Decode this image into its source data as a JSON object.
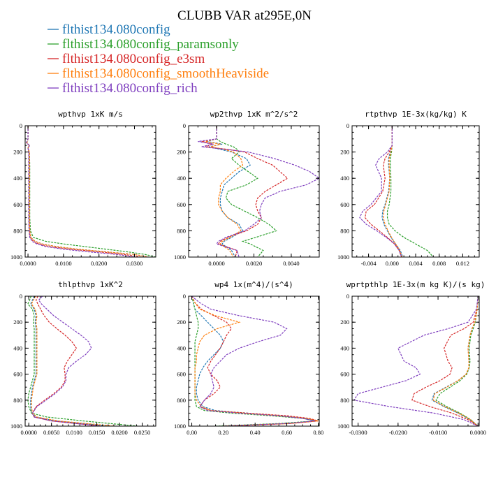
{
  "figure": {
    "title": "CLUBB VAR at295E,0N"
  },
  "legend": [
    {
      "label": "flthist134.080config",
      "color": "#1f77b4"
    },
    {
      "label": "flthist134.080config_paramsonly",
      "color": "#2ca02c"
    },
    {
      "label": "flthist134.080config_e3sm",
      "color": "#d62728"
    },
    {
      "label": "flthist134.080config_smoothHeaviside",
      "color": "#ff7f0e"
    },
    {
      "label": "flthist134.080config_rich",
      "color": "#7f3fbf"
    }
  ],
  "chart_data": [
    {
      "type": "line",
      "title": "wpthvp  1xK m/s",
      "xlim": [
        -0.0008,
        0.036
      ],
      "ylim": [
        0,
        1000
      ],
      "xticks": [
        0,
        0.01,
        0.02,
        0.03
      ],
      "xticklabels": [
        "0.0000",
        "0.0100",
        "0.0200",
        "0.0300"
      ],
      "yticks": [
        0,
        200,
        400,
        600,
        800,
        1000
      ],
      "yticklabels": [
        "0",
        "200",
        "400",
        "600",
        "800",
        "1000"
      ],
      "y": [
        0,
        100,
        130,
        150,
        170,
        200,
        300,
        400,
        500,
        600,
        700,
        800,
        850,
        880,
        900,
        920,
        940,
        960,
        980,
        1000
      ],
      "series": [
        {
          "values": [
            0,
            0,
            -0.0003,
            0.0003,
            0,
            0.0003,
            0.0004,
            0.0004,
            0.0004,
            0.0004,
            0.0004,
            0.0005,
            0.0008,
            0.002,
            0.004,
            0.008,
            0.014,
            0.022,
            0.03,
            0.034
          ]
        },
        {
          "values": [
            0,
            0,
            -0.0003,
            0.0003,
            0,
            0.0004,
            0.0005,
            0.0005,
            0.0005,
            0.0005,
            0.0005,
            0.0007,
            0.0015,
            0.005,
            0.01,
            0.016,
            0.022,
            0.028,
            0.033,
            0.036
          ]
        },
        {
          "values": [
            0,
            0,
            -0.0004,
            0.0004,
            0,
            0.0003,
            0.0003,
            0.0003,
            0.0003,
            0.0003,
            0.0003,
            0.0004,
            0.0006,
            0.0015,
            0.003,
            0.006,
            0.012,
            0.02,
            0.027,
            0.032
          ]
        },
        {
          "values": [
            0,
            0,
            -0.0003,
            0.0003,
            0,
            0.0004,
            0.0004,
            0.0004,
            0.0004,
            0.0004,
            0.0004,
            0.0005,
            0.0008,
            0.002,
            0.004,
            0.008,
            0.014,
            0.022,
            0.03,
            0.034
          ]
        },
        {
          "values": [
            0,
            0,
            -0.0005,
            0.0005,
            0,
            0.0002,
            0.0002,
            0.0002,
            0.0002,
            0.0002,
            0.0002,
            0.0003,
            0.0005,
            0.0012,
            0.0025,
            0.005,
            0.01,
            0.017,
            0.025,
            0.03
          ]
        }
      ]
    },
    {
      "type": "line",
      "title": "wp2thvp  1xK m^2/s^2",
      "xlim": [
        -0.0015,
        0.0055
      ],
      "ylim": [
        0,
        1000
      ],
      "xticks": [
        0,
        0.002,
        0.004
      ],
      "xticklabels": [
        "0.0000",
        "0.0020",
        "0.0040"
      ],
      "yticks": [
        0,
        200,
        400,
        600,
        800,
        1000
      ],
      "yticklabels": [
        "0",
        "200",
        "400",
        "600",
        "800",
        "1000"
      ],
      "y": [
        0,
        100,
        120,
        140,
        160,
        180,
        200,
        250,
        300,
        350,
        400,
        450,
        500,
        550,
        600,
        650,
        700,
        750,
        800,
        850,
        880,
        900,
        950,
        1000
      ],
      "series": [
        {
          "values": [
            0,
            0,
            -0.0005,
            0.0003,
            -0.0004,
            0.0002,
            0.0008,
            0.0016,
            0.0018,
            0.0012,
            0.0008,
            0.0004,
            0.0003,
            0.0002,
            0.0002,
            0.0003,
            0.0006,
            0.0012,
            0.0014,
            0.0008,
            0.0004,
            0.0003,
            0.0008,
            0.001
          ]
        },
        {
          "values": [
            0,
            0,
            0.0002,
            0.0005,
            0.0009,
            0.0011,
            0.0012,
            0.0008,
            0.0012,
            0.0017,
            0.0022,
            0.0016,
            0.0006,
            0.0005,
            0.0008,
            0.0015,
            0.0022,
            0.0028,
            0.0032,
            0.0021,
            0.0014,
            0.0018,
            0.0025,
            0.0022
          ]
        },
        {
          "values": [
            0,
            0,
            -0.0008,
            -0.0002,
            -0.0006,
            0.0006,
            0.0015,
            0.0022,
            0.003,
            0.0034,
            0.0038,
            0.0032,
            0.0026,
            0.0022,
            0.0021,
            0.0022,
            0.0024,
            0.0022,
            0.0016,
            0.0006,
            0.0002,
            0.0001,
            0.0011,
            0.001
          ]
        },
        {
          "values": [
            0,
            0,
            -0.0006,
            0.0002,
            -0.0003,
            0.0004,
            0.0009,
            0.0013,
            0.0014,
            0.0009,
            0.0005,
            0.0002,
            0.0002,
            0.0001,
            0.0001,
            0.0003,
            0.0006,
            0.0011,
            0.0013,
            0.0007,
            0.0003,
            0.0002,
            0.0007,
            0.0009
          ]
        },
        {
          "values": [
            0,
            0,
            -0.001,
            -0.0002,
            -0.0008,
            0.0005,
            0.0017,
            0.0031,
            0.0042,
            0.005,
            0.0055,
            0.0048,
            0.0034,
            0.0026,
            0.0024,
            0.0023,
            0.0024,
            0.002,
            0.0015,
            0.0005,
            0.0001,
            0,
            0.0011,
            0.0012
          ]
        }
      ]
    },
    {
      "type": "line",
      "title": "rtpthvp  1E-3x(kg/kg) K",
      "xlim": [
        -0.0068,
        0.0148
      ],
      "ylim": [
        0,
        1000
      ],
      "xticks": [
        -0.004,
        0,
        0.004,
        0.008,
        0.012
      ],
      "xticklabels": [
        "-0.004",
        "0.000",
        "0.004",
        "0.008",
        "0.012"
      ],
      "yticks": [
        0,
        200,
        400,
        600,
        800,
        1000
      ],
      "yticklabels": [
        "0",
        "200",
        "400",
        "600",
        "800",
        "1000"
      ],
      "y": [
        0,
        100,
        150,
        200,
        250,
        300,
        400,
        500,
        600,
        650,
        700,
        750,
        800,
        850,
        900,
        950,
        1000
      ],
      "series": [
        {
          "values": [
            0,
            0,
            0,
            -0.0003,
            -0.0006,
            -0.0006,
            -0.0004,
            -0.0006,
            -0.0012,
            -0.0016,
            -0.0017,
            -0.0014,
            -0.0008,
            -0.0002,
            0.0006,
            0.0014,
            0.0018
          ]
        },
        {
          "values": [
            0,
            0,
            0,
            -0.0001,
            -0.0003,
            -0.0003,
            -0.0002,
            -0.0002,
            -0.0005,
            -0.0008,
            -0.0008,
            -0.0005,
            0.0005,
            0.002,
            0.004,
            0.006,
            0.007
          ]
        },
        {
          "values": [
            0,
            0,
            0,
            -0.0005,
            -0.0012,
            -0.0015,
            -0.0012,
            -0.0016,
            -0.003,
            -0.0044,
            -0.0046,
            -0.0036,
            -0.0022,
            -0.0008,
            0.0004,
            0.0012,
            0.0016
          ]
        },
        {
          "values": [
            0,
            0,
            0,
            -0.0002,
            -0.0005,
            -0.0005,
            -0.0004,
            -0.0005,
            -0.0011,
            -0.0014,
            -0.0015,
            -0.0012,
            -0.0007,
            -0.0001,
            0.0006,
            0.0013,
            0.0017
          ]
        },
        {
          "values": [
            0,
            0,
            0,
            -0.0008,
            -0.0022,
            -0.0028,
            -0.0018,
            -0.0018,
            -0.0036,
            -0.005,
            -0.0055,
            -0.0044,
            -0.0026,
            -0.001,
            0.0004,
            0.0012,
            0.0016
          ]
        }
      ]
    },
    {
      "type": "line",
      "title": "thlpthvp  1xK^2",
      "xlim": [
        -0.0008,
        0.028
      ],
      "ylim": [
        0,
        1000
      ],
      "xticks": [
        0,
        0.005,
        0.01,
        0.015,
        0.02,
        0.025
      ],
      "xticklabels": [
        "0.0000",
        "0.0050",
        "0.0100",
        "0.0150",
        "0.0200",
        "0.0250"
      ],
      "yticks": [
        0,
        200,
        400,
        600,
        800,
        1000
      ],
      "yticklabels": [
        "0",
        "200",
        "400",
        "600",
        "800",
        "1000"
      ],
      "y": [
        0,
        30,
        60,
        100,
        150,
        200,
        250,
        300,
        350,
        400,
        450,
        500,
        550,
        600,
        650,
        700,
        750,
        800,
        850,
        900,
        930,
        960,
        1000
      ],
      "series": [
        {
          "values": [
            0.0012,
            0.0008,
            0.0004,
            0.0012,
            0.0016,
            0.0014,
            0.0016,
            0.0016,
            0.0016,
            0.0016,
            0.0016,
            0.0016,
            0.0016,
            0.0016,
            0.0012,
            0.0008,
            0.0006,
            0.0004,
            0.0004,
            0.0006,
            0.0015,
            0.006,
            0.018
          ]
        },
        {
          "values": [
            0.0005,
            0.0002,
            -0.0002,
            0.0008,
            0.0012,
            0.001,
            0.0012,
            0.0012,
            0.0012,
            0.0012,
            0.0012,
            0.0012,
            0.0012,
            0.0012,
            0.0008,
            0.0004,
            0,
            -0.0002,
            0,
            0.0006,
            0.004,
            0.012,
            0.024
          ]
        },
        {
          "values": [
            0.002,
            0.0016,
            0.002,
            0.0026,
            0.0034,
            0.0045,
            0.0062,
            0.008,
            0.0095,
            0.0105,
            0.0095,
            0.0085,
            0.0078,
            0.008,
            0.008,
            0.0072,
            0.0055,
            0.0035,
            0.0016,
            0.0008,
            0.0012,
            0.005,
            0.016
          ]
        },
        {
          "values": [
            0.0015,
            0.001,
            0.0006,
            0.0014,
            0.0018,
            0.0016,
            0.0018,
            0.0018,
            0.0018,
            0.0018,
            0.0018,
            0.0018,
            0.0018,
            0.0018,
            0.0014,
            0.001,
            0.0008,
            0.0006,
            0.0006,
            0.0008,
            0.0018,
            0.0065,
            0.019
          ]
        },
        {
          "values": [
            0.003,
            0.0022,
            0.0028,
            0.004,
            0.0055,
            0.0075,
            0.0095,
            0.0115,
            0.0132,
            0.0138,
            0.0125,
            0.0105,
            0.0088,
            0.0082,
            0.0082,
            0.0074,
            0.0058,
            0.0038,
            0.0018,
            0.0008,
            0.0012,
            0.005,
            0.016
          ]
        }
      ]
    },
    {
      "type": "line",
      "title": "wp4  1x(m^4)/(s^4)",
      "xlim": [
        -0.02,
        0.805
      ],
      "ylim": [
        0,
        1000
      ],
      "xticks": [
        0,
        0.2,
        0.4,
        0.6,
        0.8
      ],
      "xticklabels": [
        "0.00",
        "0.20",
        "0.40",
        "0.60",
        "0.80"
      ],
      "yticks": [
        0,
        200,
        400,
        600,
        800,
        1000
      ],
      "yticklabels": [
        "0",
        "200",
        "400",
        "600",
        "800",
        "1000"
      ],
      "y": [
        0,
        50,
        100,
        150,
        200,
        250,
        300,
        350,
        400,
        450,
        500,
        550,
        600,
        650,
        700,
        750,
        800,
        850,
        880,
        900,
        920,
        940,
        960,
        980,
        1000
      ],
      "series": [
        {
          "values": [
            0,
            0.01,
            0.02,
            0.06,
            0.1,
            0.14,
            0.18,
            0.2,
            0.18,
            0.14,
            0.1,
            0.07,
            0.05,
            0.04,
            0.03,
            0.03,
            0.04,
            0.07,
            0.15,
            0.35,
            0.55,
            0.7,
            0.78,
            0.6,
            0.2
          ]
        },
        {
          "values": [
            0,
            0.01,
            0.02,
            0.03,
            0.04,
            0.04,
            0.03,
            0.02,
            0.02,
            0.02,
            0.02,
            0.02,
            0.02,
            0.02,
            0.02,
            0.02,
            0.02,
            0.03,
            0.08,
            0.25,
            0.5,
            0.7,
            0.78,
            0.55,
            0.15
          ]
        },
        {
          "values": [
            0,
            0.02,
            0.06,
            0.14,
            0.22,
            0.25,
            0.22,
            0.2,
            0.18,
            0.15,
            0.12,
            0.1,
            0.12,
            0.16,
            0.18,
            0.14,
            0.08,
            0.05,
            0.12,
            0.35,
            0.6,
            0.74,
            0.8,
            0.62,
            0.2
          ]
        },
        {
          "values": [
            0,
            0.02,
            0.05,
            0.15,
            0.3,
            0.16,
            0.08,
            0.05,
            0.04,
            0.03,
            0.03,
            0.02,
            0.02,
            0.02,
            0.02,
            0.02,
            0.03,
            0.06,
            0.12,
            0.32,
            0.55,
            0.72,
            0.8,
            0.62,
            0.2
          ]
        },
        {
          "values": [
            0,
            0.05,
            0.12,
            0.3,
            0.52,
            0.6,
            0.56,
            0.42,
            0.3,
            0.22,
            0.18,
            0.14,
            0.12,
            0.13,
            0.14,
            0.12,
            0.08,
            0.05,
            0.1,
            0.3,
            0.55,
            0.7,
            0.78,
            0.6,
            0.2
          ]
        }
      ]
    },
    {
      "type": "line",
      "title": "wprtpthlp  1E-3x(m kg K)/(s kg)",
      "xlim": [
        -0.0315,
        0.0003
      ],
      "ylim": [
        0,
        1000
      ],
      "xticks": [
        -0.03,
        -0.02,
        -0.01,
        0
      ],
      "xticklabels": [
        "-0.0300",
        "-0.0200",
        "-0.0100",
        "0.0000"
      ],
      "yticks": [
        0,
        200,
        400,
        600,
        800,
        1000
      ],
      "yticklabels": [
        "0",
        "200",
        "400",
        "600",
        "800",
        "1000"
      ],
      "y": [
        0,
        100,
        200,
        250,
        300,
        400,
        500,
        550,
        600,
        650,
        700,
        750,
        800,
        850,
        900,
        950,
        1000
      ],
      "series": [
        {
          "values": [
            0,
            -0.0002,
            -0.0008,
            -0.0015,
            -0.002,
            -0.0025,
            -0.0022,
            -0.0022,
            -0.003,
            -0.005,
            -0.008,
            -0.011,
            -0.0115,
            -0.0085,
            -0.005,
            -0.002,
            0
          ]
        },
        {
          "values": [
            0,
            -0.0002,
            -0.0007,
            -0.0012,
            -0.0018,
            -0.0022,
            -0.002,
            -0.0022,
            -0.0028,
            -0.0045,
            -0.007,
            -0.0095,
            -0.0105,
            -0.0078,
            -0.0045,
            -0.0018,
            0
          ]
        },
        {
          "values": [
            0,
            -0.0003,
            -0.0012,
            -0.0035,
            -0.0068,
            -0.0085,
            -0.0075,
            -0.0065,
            -0.007,
            -0.0095,
            -0.013,
            -0.016,
            -0.0165,
            -0.012,
            -0.0065,
            -0.0025,
            0
          ]
        },
        {
          "values": [
            0,
            -0.0002,
            -0.0008,
            -0.0015,
            -0.002,
            -0.0025,
            -0.0023,
            -0.0023,
            -0.003,
            -0.005,
            -0.0078,
            -0.0108,
            -0.0112,
            -0.0083,
            -0.0048,
            -0.0019,
            0
          ]
        },
        {
          "values": [
            0,
            -0.0004,
            -0.0025,
            -0.0075,
            -0.0135,
            -0.02,
            -0.0185,
            -0.0155,
            -0.0145,
            -0.018,
            -0.024,
            -0.03,
            -0.031,
            -0.022,
            -0.011,
            -0.0035,
            0
          ]
        }
      ]
    }
  ]
}
